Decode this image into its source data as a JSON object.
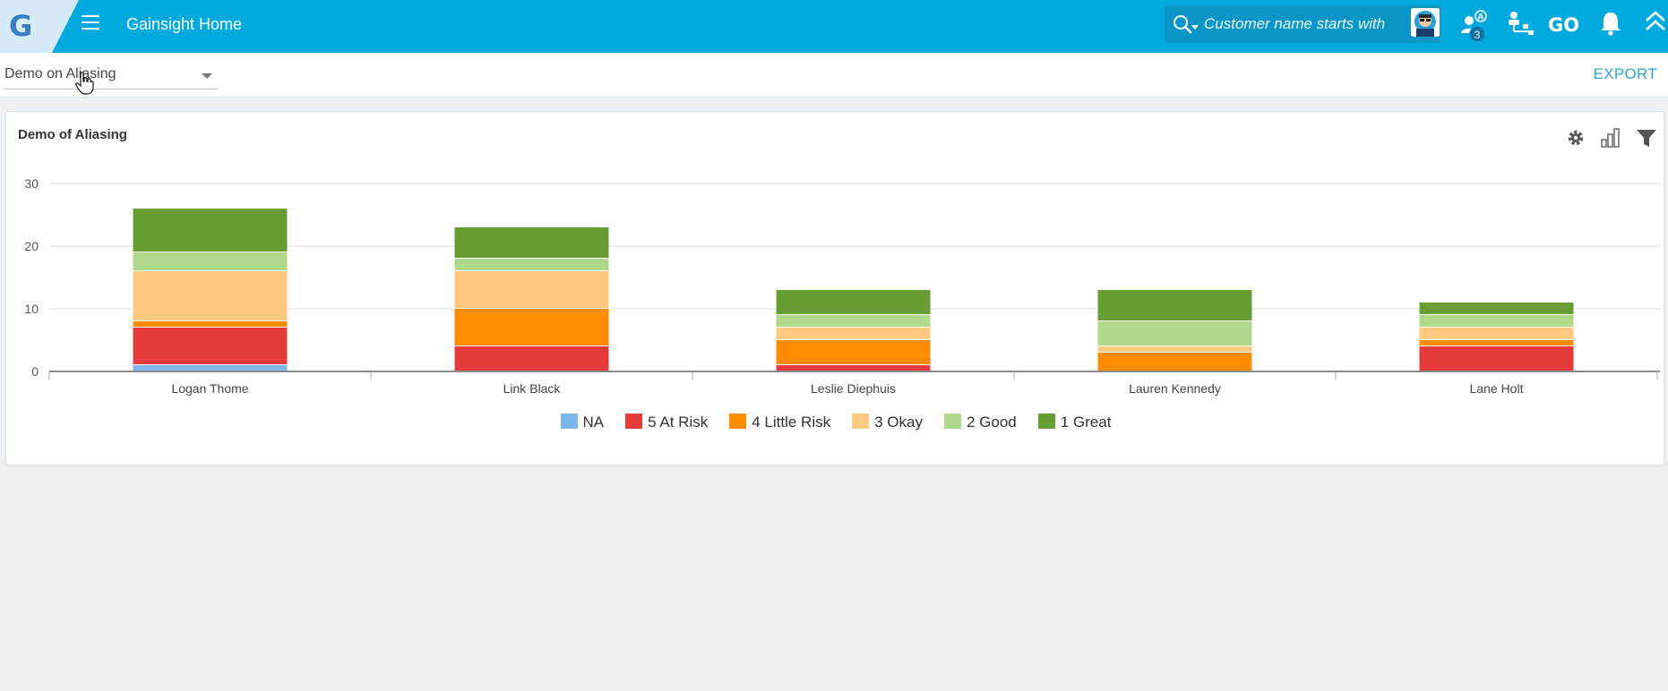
{
  "header": {
    "logo_letter": "G",
    "app_title": "Gainsight Home",
    "search_placeholder": "Customer name starts with",
    "notification_count": "3",
    "icons": [
      "search-icon",
      "avatar",
      "people-icon",
      "hierarchy-icon",
      "go-icon",
      "bell-icon",
      "collapse-up-icon"
    ]
  },
  "subheader": {
    "dashboard_selected": "Demo on Aliasing",
    "export_label": "EXPORT"
  },
  "widget": {
    "title": "Demo of Aliasing",
    "tools": [
      "gear-icon",
      "chart-type-icon",
      "filter-icon"
    ]
  },
  "chart_data": {
    "type": "bar",
    "stacked": true,
    "title": "Demo of Aliasing",
    "categories": [
      "Logan Thome",
      "Link Black",
      "Leslie Diephuis",
      "Lauren Kennedy",
      "Lane Holt"
    ],
    "series": [
      {
        "name": "NA",
        "color": "#7cb5ec",
        "values": [
          1,
          0,
          0,
          0,
          0
        ]
      },
      {
        "name": "5 At Risk",
        "color": "#e63b3b",
        "values": [
          6,
          4,
          1,
          0,
          4
        ]
      },
      {
        "name": "4 Little Risk",
        "color": "#ff8c00",
        "values": [
          1,
          6,
          4,
          3,
          1
        ]
      },
      {
        "name": "3 Okay",
        "color": "#ffca80",
        "values": [
          8,
          6,
          2,
          1,
          2
        ]
      },
      {
        "name": "2 Good",
        "color": "#b0d88a",
        "values": [
          3,
          2,
          2,
          4,
          2
        ]
      },
      {
        "name": "1 Great",
        "color": "#679e33",
        "values": [
          7,
          5,
          4,
          5,
          2
        ]
      }
    ],
    "yticks": [
      0,
      10,
      20,
      30
    ],
    "ylim": [
      0,
      30
    ],
    "grid": true,
    "legend_position": "bottom"
  }
}
